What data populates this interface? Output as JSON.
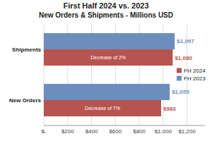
{
  "chart_data": {
    "type": "bar",
    "orientation": "horizontal",
    "title": "First Half 2024 vs. 2023",
    "subtitle": "New Orders & Shipments - Millions USD",
    "categories": [
      "Shipments",
      "New Orders"
    ],
    "series": [
      {
        "name": "FH 2024",
        "color": "#b85450",
        "values": [
          1080,
          983
        ],
        "value_labels": [
          "$1,080",
          "$983"
        ]
      },
      {
        "name": "FH 2023",
        "color": "#6c8ebf",
        "values": [
          1097,
          1055
        ],
        "value_labels": [
          "$1,097",
          "$1,055"
        ]
      }
    ],
    "annotations": [
      {
        "text": "Decrease of 2%",
        "category": "Shipments",
        "series": "FH 2024"
      },
      {
        "text": "Decrease of 7%",
        "category": "New Orders",
        "series": "FH 2024"
      }
    ],
    "xlim": [
      0,
      1350
    ],
    "xticks": [
      {
        "value": 0,
        "label": "$-"
      },
      {
        "value": 200,
        "label": "$200"
      },
      {
        "value": 400,
        "label": "$400"
      },
      {
        "value": 600,
        "label": "$600"
      },
      {
        "value": 800,
        "label": "$800"
      },
      {
        "value": 1000,
        "label": "$1,000"
      },
      {
        "value": 1200,
        "label": "$1,200"
      }
    ],
    "grid": true,
    "legend": "right",
    "data_labels": true
  }
}
